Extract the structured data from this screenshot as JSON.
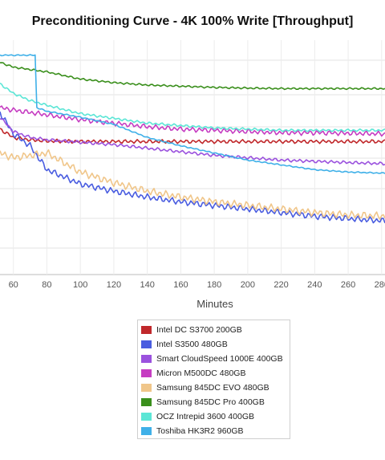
{
  "chart_data": {
    "type": "line",
    "title": "Preconditioning Curve - 4K 100% Write [Throughput]",
    "xlabel": "Minutes",
    "ylabel": "",
    "xlim": [
      52,
      282
    ],
    "ylim": [
      0,
      100
    ],
    "x_ticks": [
      60,
      80,
      100,
      120,
      140,
      160,
      180,
      200,
      220,
      240,
      260,
      280
    ],
    "x_tick_labels": [
      "60",
      "80",
      "100",
      "120",
      "140",
      "160",
      "180",
      "200",
      "220",
      "240",
      "260",
      "280"
    ],
    "grid": true,
    "legend_position": "bottom",
    "series": [
      {
        "name": "Intel DC S3700 200GB",
        "color": "#c0282b",
        "x": [
          52,
          60,
          70,
          80,
          100,
          120,
          140,
          160,
          180,
          200,
          220,
          240,
          260,
          282
        ],
        "y": [
          61,
          57.5,
          56.5,
          56,
          55.8,
          55.8,
          55.8,
          55.8,
          55.8,
          55.8,
          55.8,
          55.8,
          55.8,
          55.8
        ]
      },
      {
        "name": "Intel S3500 480GB",
        "color": "#4a5de0",
        "x": [
          52,
          60,
          70,
          80,
          100,
          120,
          140,
          160,
          180,
          200,
          220,
          240,
          260,
          282
        ],
        "y": [
          68,
          59,
          54,
          44,
          38,
          35,
          32.5,
          30.5,
          29,
          27.5,
          26,
          24.5,
          23.5,
          22.5
        ]
      },
      {
        "name": "Smart CloudSpeed 1000E 400GB",
        "color": "#9b52de",
        "x": [
          52,
          60,
          70,
          80,
          100,
          120,
          140,
          160,
          180,
          200,
          220,
          240,
          260,
          282
        ],
        "y": [
          66,
          60,
          57.5,
          56.5,
          55.5,
          54.5,
          53,
          51.5,
          50,
          49,
          48,
          47.5,
          47,
          46.5
        ]
      },
      {
        "name": "Micron M500DC 480GB",
        "color": "#c63dc2",
        "x": [
          52,
          60,
          70,
          80,
          100,
          120,
          140,
          160,
          180,
          200,
          220,
          240,
          260,
          282
        ],
        "y": [
          70,
          69,
          68,
          67,
          65,
          63.5,
          62,
          61,
          60.5,
          60,
          59.5,
          59.5,
          59.3,
          59
        ]
      },
      {
        "name": "Samsung 845DC EVO 480GB",
        "color": "#f0c68a",
        "x": [
          52,
          60,
          70,
          80,
          100,
          120,
          140,
          160,
          180,
          200,
          220,
          240,
          260,
          282
        ],
        "y": [
          51,
          49,
          50,
          51,
          43,
          38.5,
          35,
          32.5,
          30.5,
          29,
          27.5,
          26,
          25,
          24.5
        ]
      },
      {
        "name": "Samsung 845DC Pro 400GB",
        "color": "#3a8f1c",
        "x": [
          52,
          60,
          70,
          80,
          100,
          120,
          140,
          160,
          180,
          200,
          220,
          240,
          260,
          282
        ],
        "y": [
          89,
          87,
          86,
          85,
          82,
          80.5,
          79.5,
          79,
          78.5,
          78.2,
          78,
          78,
          78,
          78
        ]
      },
      {
        "name": "OCZ Intrepid 3600 400GB",
        "color": "#5ce6d6",
        "x": [
          52,
          60,
          70,
          80,
          100,
          120,
          140,
          160,
          180,
          200,
          220,
          240,
          260,
          282
        ],
        "y": [
          80,
          76,
          73,
          71,
          67.5,
          65.5,
          63.5,
          62.5,
          61.5,
          61,
          60.5,
          60.5,
          60.5,
          60.5
        ]
      },
      {
        "name": "Toshiba HK3R2 960GB",
        "color": "#3fb0e8",
        "x": [
          52,
          60,
          70,
          73,
          74,
          80,
          100,
          120,
          140,
          160,
          180,
          200,
          220,
          240,
          260,
          282
        ],
        "y": [
          92,
          92,
          92,
          92,
          70,
          68.5,
          66,
          63,
          57.5,
          54,
          51,
          48,
          46,
          44,
          43,
          42.5
        ]
      }
    ]
  }
}
